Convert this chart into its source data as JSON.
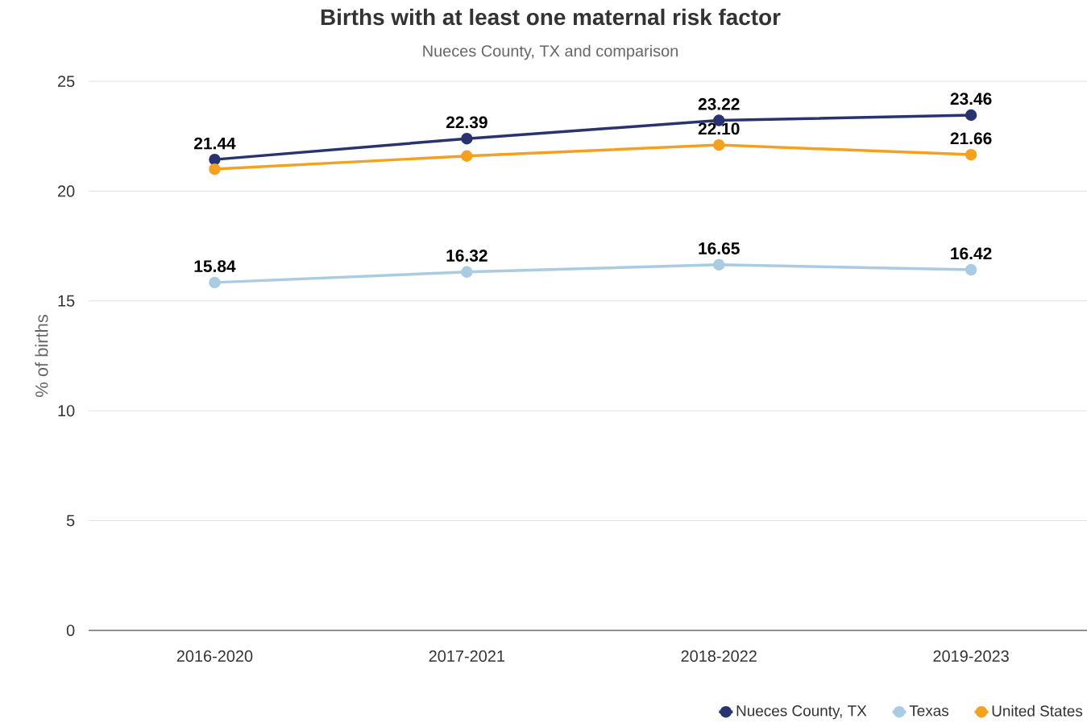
{
  "chart_data": {
    "type": "line",
    "title": "Births with at least one maternal risk factor",
    "subtitle": "Nueces County, TX and comparison",
    "ylabel": "% of births",
    "categories": [
      "2016-2020",
      "2017-2021",
      "2018-2022",
      "2019-2023"
    ],
    "series": [
      {
        "name": "Nueces County, TX",
        "color": "#283370",
        "values": [
          21.44,
          22.39,
          23.22,
          23.46
        ],
        "value_labels": [
          "21.44",
          "22.39",
          "23.22",
          "23.46"
        ]
      },
      {
        "name": "Texas",
        "color": "#a9cce3",
        "values": [
          15.84,
          16.32,
          16.65,
          16.42
        ],
        "value_labels": [
          "15.84",
          "16.32",
          "16.65",
          "16.42"
        ]
      },
      {
        "name": "United States",
        "color": "#f5a11f",
        "values": [
          21.0,
          21.6,
          22.1,
          21.66
        ],
        "value_labels": [
          null,
          null,
          "22.10",
          "21.66"
        ]
      }
    ],
    "ylim": [
      0,
      25
    ],
    "yticks": [
      0,
      5,
      10,
      15,
      20,
      25
    ],
    "grid": "y",
    "legend": "bottom right",
    "marker": "circle",
    "line_style": "solid"
  }
}
